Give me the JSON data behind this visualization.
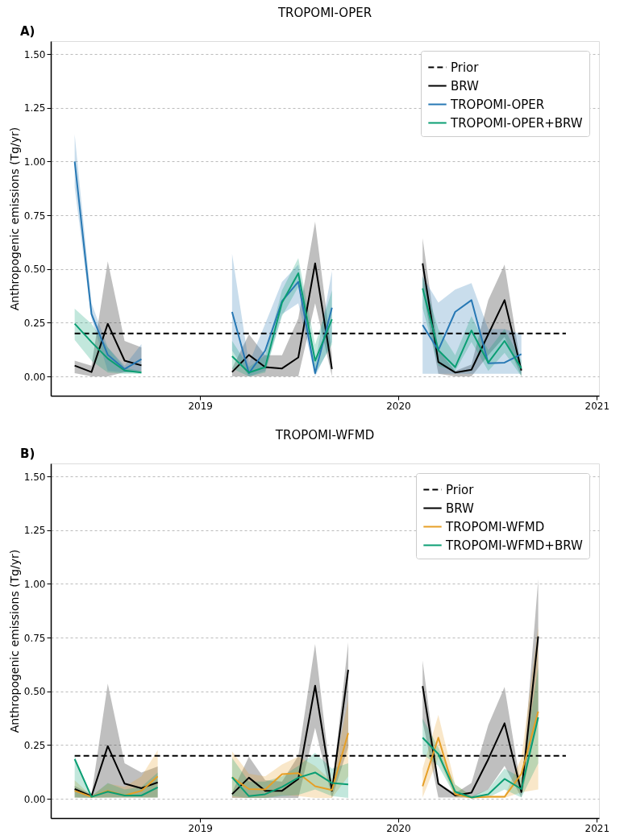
{
  "chart_data": [
    {
      "type": "line",
      "title": "TROPOMI-OPER",
      "annotations": [
        "A)"
      ],
      "ylabel": "Anthropogenic emissions (Tg/yr)",
      "xlim": [
        "2018-04-01",
        "2021-01-05"
      ],
      "xticks": [
        "2019",
        "2020",
        "2021"
      ],
      "ylim": [
        -0.09,
        1.56
      ],
      "yticks": [
        {
          "value": 0,
          "label": "0.00"
        },
        {
          "value": 0.25,
          "label": "0.25"
        },
        {
          "value": 0.5,
          "label": "0.50"
        },
        {
          "value": 0.75,
          "label": "0.75"
        },
        {
          "value": 1.0,
          "label": "1.00"
        },
        {
          "value": 1.25,
          "label": "1.25"
        },
        {
          "value": 1.5,
          "label": "1.50"
        }
      ],
      "grid": "y",
      "legend": "top right",
      "x": [
        "2018-05-15",
        "2018-06-15",
        "2018-07-15",
        "2018-08-15",
        "2018-09-15",
        "2018-12-15",
        "2019-03-01",
        "2019-04-01",
        "2019-05-01",
        "2019-06-01",
        "2019-07-01",
        "2019-08-01",
        "2019-09-01",
        "2019-12-01",
        "2020-02-15",
        "2020-03-15",
        "2020-04-15",
        "2020-05-15",
        "2020-06-15",
        "2020-07-15",
        "2020-08-15"
      ],
      "series": [
        {
          "name": "Prior",
          "color": "#000000",
          "line_style": "dashed",
          "x": [
            "2018-05-15",
            "2020-11-05"
          ],
          "values": [
            0.2,
            0.2
          ]
        },
        {
          "name": "BRW",
          "color": "#000000",
          "values": [
            0.05,
            0.02,
            0.245,
            0.073,
            0.051,
            null,
            0.02,
            0.1,
            0.043,
            0.037,
            0.088,
            0.526,
            0.034,
            null,
            0.526,
            0.067,
            0.018,
            0.031,
            0.196,
            0.355,
            0.027
          ],
          "lower": [
            0.015,
            0.0,
            0.0,
            0.02,
            0.02,
            null,
            0.0,
            0.0,
            0.0,
            0.0,
            0.0,
            0.34,
            0.0,
            null,
            0.404,
            0.012,
            0.0,
            0.0,
            0.098,
            0.184,
            0.0
          ],
          "upper": [
            0.073,
            0.05,
            0.535,
            0.165,
            0.135,
            null,
            0.037,
            0.196,
            0.098,
            0.098,
            0.27,
            0.72,
            0.098,
            null,
            0.643,
            0.122,
            0.025,
            0.055,
            0.355,
            0.52,
            0.037
          ]
        },
        {
          "name": "TROPOMI-OPER",
          "color": "#2778b4",
          "values": [
            1.0,
            0.29,
            0.1,
            0.034,
            0.08,
            null,
            0.3,
            0.015,
            0.12,
            0.35,
            0.44,
            0.015,
            0.32,
            null,
            0.239,
            0.122,
            0.3,
            0.355,
            0.061,
            0.064,
            0.104
          ],
          "lower": [
            0.88,
            0.27,
            0.025,
            0.018,
            0.025,
            null,
            0.12,
            0.0,
            0.025,
            0.29,
            0.34,
            0.0,
            0.16,
            null,
            0.012,
            0.012,
            0.012,
            0.012,
            0.012,
            0.012,
            0.012
          ],
          "upper": [
            1.126,
            0.34,
            0.135,
            0.05,
            0.15,
            null,
            0.57,
            0.06,
            0.245,
            0.44,
            0.52,
            0.06,
            0.49,
            null,
            0.465,
            0.343,
            0.404,
            0.434,
            0.22,
            0.22,
            0.196
          ]
        },
        {
          "name": "TROPOMI-OPER+BRW",
          "color": "#0a9e73",
          "values": [
            0.245,
            0.16,
            0.083,
            0.027,
            0.018,
            null,
            0.094,
            0.018,
            0.043,
            0.343,
            0.48,
            0.073,
            0.266,
            null,
            0.41,
            0.122,
            0.043,
            0.214,
            0.064,
            0.165,
            0.037
          ],
          "lower": [
            0.17,
            0.073,
            0.018,
            0.012,
            0.012,
            null,
            0.037,
            0.0,
            0.018,
            0.28,
            0.416,
            0.012,
            0.147,
            null,
            0.318,
            0.049,
            0.025,
            0.16,
            0.025,
            0.11,
            0.0
          ],
          "upper": [
            0.315,
            0.245,
            0.135,
            0.04,
            0.025,
            null,
            0.165,
            0.043,
            0.098,
            0.4,
            0.55,
            0.147,
            0.4,
            null,
            0.465,
            0.22,
            0.098,
            0.28,
            0.122,
            0.22,
            0.073
          ]
        }
      ]
    },
    {
      "type": "line",
      "title": "TROPOMI-WFMD",
      "annotations": [
        "B)"
      ],
      "ylabel": "Anthropogenic emissions (Tg/yr)",
      "xlim": [
        "2018-04-01",
        "2021-01-05"
      ],
      "xticks": [
        "2019",
        "2020",
        "2021"
      ],
      "ylim": [
        -0.09,
        1.56
      ],
      "yticks": [
        {
          "value": 0,
          "label": "0.00"
        },
        {
          "value": 0.25,
          "label": "0.25"
        },
        {
          "value": 0.5,
          "label": "0.50"
        },
        {
          "value": 0.75,
          "label": "0.75"
        },
        {
          "value": 1.0,
          "label": "1.00"
        },
        {
          "value": 1.25,
          "label": "1.25"
        },
        {
          "value": 1.5,
          "label": "1.50"
        }
      ],
      "grid": "y",
      "legend": "top right",
      "x": [
        "2018-05-15",
        "2018-06-15",
        "2018-07-15",
        "2018-08-15",
        "2018-09-15",
        "2018-10-15",
        "2018-12-15",
        "2019-03-01",
        "2019-04-01",
        "2019-05-01",
        "2019-06-01",
        "2019-07-01",
        "2019-08-01",
        "2019-09-01",
        "2019-10-01",
        "2019-12-01",
        "2020-02-15",
        "2020-03-15",
        "2020-04-15",
        "2020-05-15",
        "2020-06-15",
        "2020-07-15",
        "2020-08-15",
        "2020-09-15"
      ],
      "series": [
        {
          "name": "Prior",
          "color": "#000000",
          "line_style": "dashed",
          "x": [
            "2018-05-15",
            "2020-11-05"
          ],
          "values": [
            0.2,
            0.2
          ]
        },
        {
          "name": "BRW",
          "color": "#000000",
          "values": [
            0.045,
            0.012,
            0.245,
            0.07,
            0.049,
            0.076,
            null,
            0.021,
            0.098,
            0.037,
            0.037,
            0.092,
            0.526,
            0.037,
            0.6,
            null,
            0.524,
            0.07,
            0.015,
            0.028,
            0.184,
            0.351,
            0.031,
            0.755
          ],
          "lower": [
            0.006,
            0.006,
            0.006,
            0.006,
            0.006,
            0.006,
            null,
            0.004,
            0.004,
            0.004,
            0.004,
            0.004,
            0.33,
            0.004,
            0.24,
            null,
            0.36,
            0.006,
            0.006,
            0.006,
            0.043,
            0.153,
            0.006,
            0.386
          ],
          "upper": [
            0.06,
            0.02,
            0.535,
            0.165,
            0.122,
            0.15,
            null,
            0.03,
            0.196,
            0.086,
            0.08,
            0.2,
            0.72,
            0.043,
            0.728,
            null,
            0.643,
            0.073,
            0.025,
            0.073,
            0.343,
            0.52,
            0.043,
            1.022
          ]
        },
        {
          "name": "TROPOMI-WFMD",
          "color": "#e69f26",
          "values": [
            0.037,
            0.009,
            0.037,
            0.015,
            0.037,
            0.104,
            null,
            0.1,
            0.045,
            0.043,
            0.114,
            0.119,
            0.058,
            0.04,
            0.306,
            null,
            0.058,
            0.284,
            0.021,
            0.006,
            0.009,
            0.009,
            0.116,
            0.406
          ],
          "lower": [
            0.006,
            0.004,
            0.006,
            0.006,
            0.006,
            0.006,
            null,
            0.006,
            0.004,
            0.004,
            0.018,
            0.012,
            0.004,
            0.004,
            0.104,
            null,
            0.006,
            0.19,
            0.006,
            0.004,
            0.004,
            0.004,
            0.03,
            0.043
          ],
          "upper": [
            0.086,
            0.012,
            0.07,
            0.055,
            0.104,
            0.226,
            null,
            0.22,
            0.116,
            0.104,
            0.159,
            0.196,
            0.153,
            0.08,
            0.46,
            null,
            0.14,
            0.39,
            0.067,
            0.012,
            0.012,
            0.012,
            0.19,
            0.8
          ]
        },
        {
          "name": "TROPOMI-WFMD+BRW",
          "color": "#0a9e73",
          "values": [
            0.184,
            0.009,
            0.033,
            0.015,
            0.015,
            0.053,
            null,
            0.1,
            0.012,
            0.021,
            0.055,
            0.098,
            0.122,
            0.073,
            0.067,
            null,
            0.284,
            0.208,
            0.033,
            0.006,
            0.021,
            0.092,
            0.045,
            0.379
          ],
          "lower": [
            0.006,
            0.004,
            0.006,
            0.006,
            0.006,
            0.006,
            null,
            0.012,
            0.004,
            0.004,
            0.012,
            0.018,
            0.043,
            0.012,
            0.004,
            null,
            0.208,
            0.153,
            0.012,
            0.004,
            0.006,
            0.043,
            0.006,
            0.165
          ],
          "upper": [
            0.2,
            0.012,
            0.073,
            0.043,
            0.055,
            0.122,
            null,
            0.19,
            0.08,
            0.08,
            0.104,
            0.153,
            0.214,
            0.14,
            0.165,
            null,
            0.373,
            0.239,
            0.067,
            0.012,
            0.043,
            0.14,
            0.098,
            0.612
          ]
        }
      ]
    }
  ]
}
